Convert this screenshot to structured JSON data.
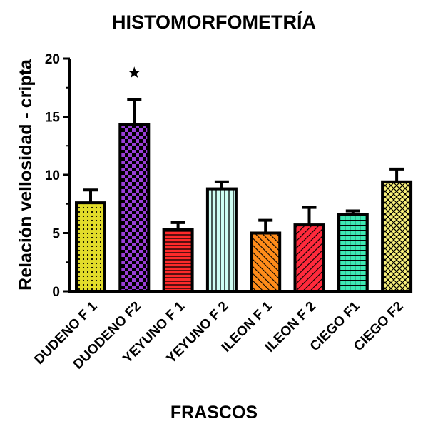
{
  "chart_data": {
    "type": "bar",
    "title": "HISTOMORFOMETRÍA",
    "xlabel": "FRASCOS",
    "ylabel": "Relación vellosidad - cripta",
    "ylim": [
      0,
      20
    ],
    "yticks": [
      0,
      5,
      10,
      15,
      20
    ],
    "categories": [
      "DUDENO F 1",
      "DUODENO F2",
      "YEYUNO F 1",
      "YEYUNO F 2",
      "ILEON F 1",
      "ILEON F 2",
      "CIEGO F1",
      "CIEGO F2"
    ],
    "values": [
      7.6,
      14.3,
      5.3,
      8.8,
      5.0,
      5.7,
      6.6,
      9.4
    ],
    "errors": [
      1.1,
      2.2,
      0.6,
      0.6,
      1.1,
      1.5,
      0.3,
      1.1
    ],
    "colors": [
      "#e2dc2a",
      "#9b3ed8",
      "#ff2a2a",
      "#cffff4",
      "#ff8c1a",
      "#ff2a3c",
      "#3de8b3",
      "#f7f07a"
    ],
    "patterns": [
      "dots",
      "checker",
      "hlines",
      "vlines",
      "diagonal",
      "diagonal-rev",
      "grid",
      "crosshatch"
    ],
    "annotations": [
      {
        "category": "DUODENO F2",
        "symbol": "★"
      }
    ],
    "grid": false,
    "legend": "none"
  }
}
